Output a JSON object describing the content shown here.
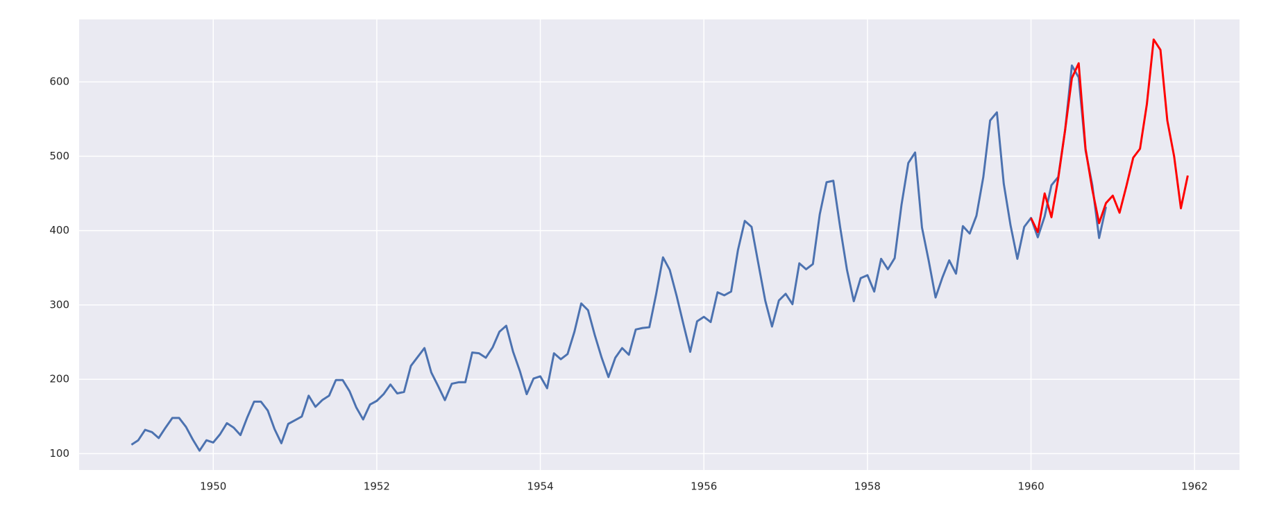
{
  "chart_data": {
    "type": "line",
    "xlim": [
      1948.36,
      1962.55
    ],
    "ylim": [
      78,
      684
    ],
    "xticks": [
      1950,
      1952,
      1954,
      1956,
      1958,
      1960,
      1962
    ],
    "yticks": [
      100,
      200,
      300,
      400,
      500,
      600
    ],
    "grid": true,
    "series": [
      {
        "color": "#4c72b0",
        "x": [
          1949,
          1949.083,
          1949.167,
          1949.25,
          1949.333,
          1949.417,
          1949.5,
          1949.583,
          1949.667,
          1949.75,
          1949.833,
          1949.917,
          1950,
          1950.083,
          1950.167,
          1950.25,
          1950.333,
          1950.417,
          1950.5,
          1950.583,
          1950.667,
          1950.75,
          1950.833,
          1950.917,
          1951,
          1951.083,
          1951.167,
          1951.25,
          1951.333,
          1951.417,
          1951.5,
          1951.583,
          1951.667,
          1951.75,
          1951.833,
          1951.917,
          1952,
          1952.083,
          1952.167,
          1952.25,
          1952.333,
          1952.417,
          1952.5,
          1952.583,
          1952.667,
          1952.75,
          1952.833,
          1952.917,
          1953,
          1953.083,
          1953.167,
          1953.25,
          1953.333,
          1953.417,
          1953.5,
          1953.583,
          1953.667,
          1953.75,
          1953.833,
          1953.917,
          1954,
          1954.083,
          1954.167,
          1954.25,
          1954.333,
          1954.417,
          1954.5,
          1954.583,
          1954.667,
          1954.75,
          1954.833,
          1954.917,
          1955,
          1955.083,
          1955.167,
          1955.25,
          1955.333,
          1955.417,
          1955.5,
          1955.583,
          1955.667,
          1955.75,
          1955.833,
          1955.917,
          1956,
          1956.083,
          1956.167,
          1956.25,
          1956.333,
          1956.417,
          1956.5,
          1956.583,
          1956.667,
          1956.75,
          1956.833,
          1956.917,
          1957,
          1957.083,
          1957.167,
          1957.25,
          1957.333,
          1957.417,
          1957.5,
          1957.583,
          1957.667,
          1957.75,
          1957.833,
          1957.917,
          1958,
          1958.083,
          1958.167,
          1958.25,
          1958.333,
          1958.417,
          1958.5,
          1958.583,
          1958.667,
          1958.75,
          1958.833,
          1958.917,
          1959,
          1959.083,
          1959.167,
          1959.25,
          1959.333,
          1959.417,
          1959.5,
          1959.583,
          1959.667,
          1959.75,
          1959.833,
          1959.917,
          1960,
          1960.083,
          1960.167,
          1960.25,
          1960.333,
          1960.417,
          1960.5,
          1960.583,
          1960.667,
          1960.75,
          1960.833,
          1960.917
        ],
        "values": [
          112,
          118,
          132,
          129,
          121,
          135,
          148,
          148,
          136,
          119,
          104,
          118,
          115,
          126,
          141,
          135,
          125,
          149,
          170,
          170,
          158,
          133,
          114,
          140,
          145,
          150,
          178,
          163,
          172,
          178,
          199,
          199,
          184,
          162,
          146,
          166,
          171,
          180,
          193,
          181,
          183,
          218,
          230,
          242,
          209,
          191,
          172,
          194,
          196,
          196,
          236,
          235,
          229,
          243,
          264,
          272,
          237,
          211,
          180,
          201,
          204,
          188,
          235,
          227,
          234,
          264,
          302,
          293,
          259,
          229,
          203,
          229,
          242,
          233,
          267,
          269,
          270,
          315,
          364,
          347,
          312,
          274,
          237,
          278,
          284,
          277,
          317,
          313,
          318,
          374,
          413,
          405,
          355,
          306,
          271,
          306,
          315,
          301,
          356,
          348,
          355,
          422,
          465,
          467,
          404,
          347,
          305,
          336,
          340,
          318,
          362,
          348,
          363,
          435,
          491,
          505,
          404,
          359,
          310,
          337,
          360,
          342,
          406,
          396,
          420,
          472,
          548,
          559,
          463,
          407,
          362,
          405,
          417,
          391,
          419,
          461,
          472,
          535,
          622,
          606,
          508,
          461,
          390,
          432
        ]
      },
      {
        "color": "#ff0000",
        "x": [
          1960,
          1960.083,
          1960.167,
          1960.25,
          1960.333,
          1960.417,
          1960.5,
          1960.583,
          1960.667,
          1960.75,
          1960.833,
          1960.917,
          1961,
          1961.083,
          1961.167,
          1961.25,
          1961.333,
          1961.417,
          1961.5,
          1961.583,
          1961.667,
          1961.75,
          1961.833,
          1961.917
        ],
        "values": [
          417,
          398,
          450,
          418,
          470,
          535,
          605,
          625,
          510,
          455,
          410,
          437,
          447,
          424,
          460,
          498,
          510,
          570,
          657,
          643,
          548,
          500,
          430,
          474
        ]
      }
    ]
  }
}
